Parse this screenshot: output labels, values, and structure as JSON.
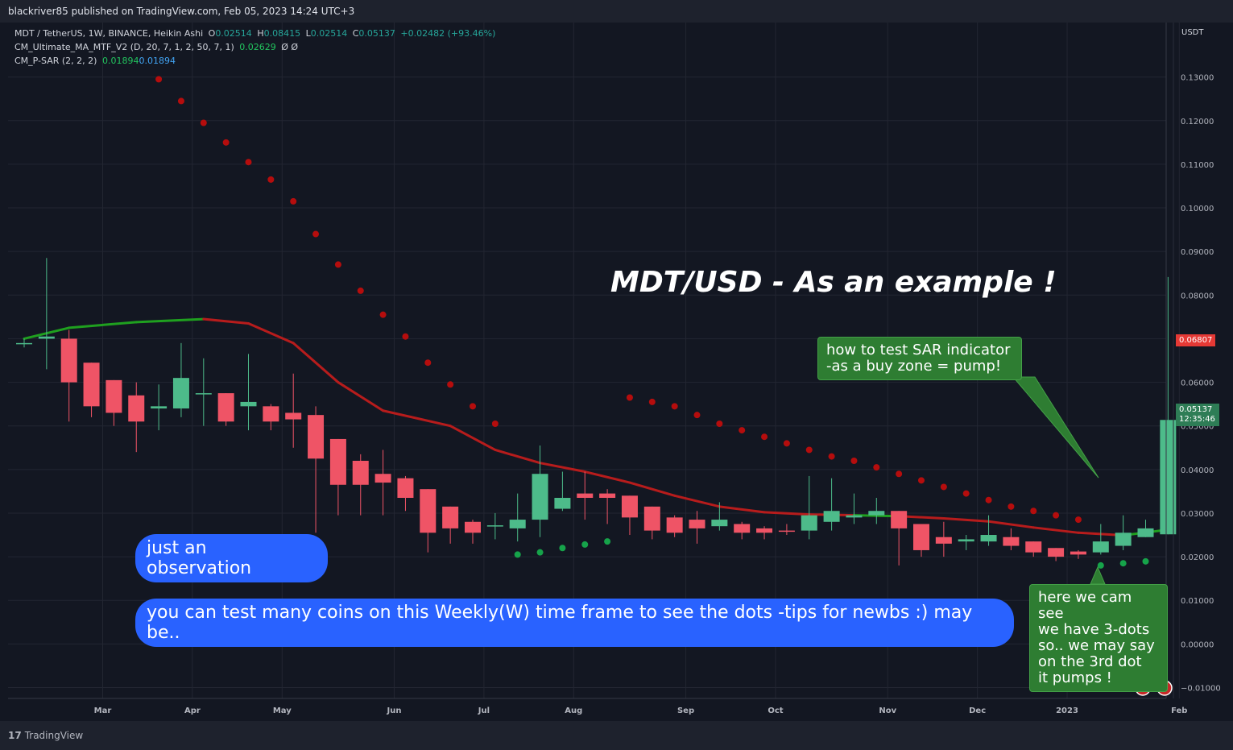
{
  "header": {
    "publish_line": "blackriver85 published on TradingView.com, Feb 05, 2023 14:24 UTC+3"
  },
  "legend": {
    "symbol_line": {
      "label": "MDT / TetherUS, 1W, BINANCE, Heikin Ashi",
      "o_label": "O",
      "o": "0.02514",
      "h_label": "H",
      "h": "0.08415",
      "l_label": "L",
      "l": "0.02514",
      "c_label": "C",
      "c": "0.05137",
      "change": "+0.02482 (+93.46%)"
    },
    "ma_line": {
      "label": "CM_Ultimate_MA_MTF_V2 (D, 20, 7, 1, 2, 50, 7, 1)",
      "value": "0.02629",
      "extra": "Ø  Ø"
    },
    "sar_line": {
      "label": "CM_P-SAR (2, 2, 2)",
      "value1": "0.01894",
      "value2": "0.01894"
    }
  },
  "annotations": {
    "title": "MDT/USD  - As an example !",
    "observation": "just an observation",
    "tips": "you can test many coins on this Weekly(W) time frame to see the dots -tips for newbs :) may be..",
    "sar_note": [
      "how to test SAR  indicator",
      "-as a buy zone = pump!"
    ],
    "dots_note": [
      "here we cam see",
      "we have 3-dots",
      "so.. we may say",
      "on the 3rd dot",
      "it pumps !"
    ]
  },
  "price_axis": {
    "unit": "USDT",
    "tag_ma": "0.06807",
    "tag_last": "0.05137",
    "tag_countdown": "12:35:46"
  },
  "footer": {
    "brand": "TradingView"
  },
  "colors": {
    "up": "#4dbb8a",
    "down": "#ef5466",
    "ma_up": "#1fa01f",
    "ma_down": "#b71c1c",
    "sar_up": "#16a34a",
    "sar_down": "#b50d0d",
    "bubble_blue": "#2962ff",
    "bubble_green": "#2e7d32"
  },
  "chart_data": {
    "type": "candlestick",
    "ylim": [
      -0.0125,
      0.1425
    ],
    "yticks": [
      -0.01,
      0,
      0.01,
      0.02,
      0.03,
      0.04,
      0.05,
      0.06,
      0.07,
      0.08,
      0.09,
      0.1,
      0.11,
      0.12,
      0.13
    ],
    "ytick_labels": [
      "−0.01000",
      "0.00000",
      "0.01000",
      "0.02000",
      "0.03000",
      "0.04000",
      "0.05000",
      "0.06000",
      "0.07000",
      "0.08000",
      "0.09000",
      "0.10000",
      "0.11000",
      "0.12000",
      "0.13000"
    ],
    "month_labels": [
      "Mar",
      "Apr",
      "May",
      "Jun",
      "Jul",
      "Aug",
      "Sep",
      "Oct",
      "Nov",
      "Dec",
      "2023",
      "Feb"
    ],
    "month_ticks": [
      3.5,
      7.5,
      11.5,
      16.5,
      20.5,
      24.5,
      29.5,
      33.5,
      38.5,
      42.5,
      46.5,
      51.5
    ],
    "candles": [
      {
        "o": 0.069,
        "h": 0.07,
        "l": 0.068,
        "c": 0.069
      },
      {
        "o": 0.07,
        "h": 0.0885,
        "l": 0.063,
        "c": 0.0705
      },
      {
        "o": 0.07,
        "h": 0.072,
        "l": 0.051,
        "c": 0.06
      },
      {
        "o": 0.0645,
        "h": 0.0645,
        "l": 0.052,
        "c": 0.0545
      },
      {
        "o": 0.0605,
        "h": 0.0605,
        "l": 0.05,
        "c": 0.053
      },
      {
        "o": 0.057,
        "h": 0.06,
        "l": 0.044,
        "c": 0.051
      },
      {
        "o": 0.054,
        "h": 0.0595,
        "l": 0.049,
        "c": 0.0545
      },
      {
        "o": 0.054,
        "h": 0.069,
        "l": 0.052,
        "c": 0.061
      },
      {
        "o": 0.0575,
        "h": 0.0655,
        "l": 0.05,
        "c": 0.0575
      },
      {
        "o": 0.0575,
        "h": 0.0575,
        "l": 0.05,
        "c": 0.051
      },
      {
        "o": 0.0545,
        "h": 0.0665,
        "l": 0.049,
        "c": 0.0555
      },
      {
        "o": 0.0545,
        "h": 0.055,
        "l": 0.049,
        "c": 0.051
      },
      {
        "o": 0.053,
        "h": 0.062,
        "l": 0.045,
        "c": 0.0515
      },
      {
        "o": 0.0525,
        "h": 0.0545,
        "l": 0.0255,
        "c": 0.0425
      },
      {
        "o": 0.047,
        "h": 0.047,
        "l": 0.0295,
        "c": 0.0365
      },
      {
        "o": 0.042,
        "h": 0.0435,
        "l": 0.0295,
        "c": 0.0365
      },
      {
        "o": 0.039,
        "h": 0.0445,
        "l": 0.0295,
        "c": 0.037
      },
      {
        "o": 0.038,
        "h": 0.0385,
        "l": 0.0305,
        "c": 0.0335
      },
      {
        "o": 0.0355,
        "h": 0.0355,
        "l": 0.021,
        "c": 0.0255
      },
      {
        "o": 0.0315,
        "h": 0.0315,
        "l": 0.023,
        "c": 0.0265
      },
      {
        "o": 0.028,
        "h": 0.0285,
        "l": 0.023,
        "c": 0.0255
      },
      {
        "o": 0.027,
        "h": 0.03,
        "l": 0.024,
        "c": 0.0272
      },
      {
        "o": 0.0265,
        "h": 0.0345,
        "l": 0.0235,
        "c": 0.0285
      },
      {
        "o": 0.0285,
        "h": 0.0455,
        "l": 0.0245,
        "c": 0.039
      },
      {
        "o": 0.031,
        "h": 0.0395,
        "l": 0.0305,
        "c": 0.0335
      },
      {
        "o": 0.0345,
        "h": 0.0395,
        "l": 0.0285,
        "c": 0.0335
      },
      {
        "o": 0.0345,
        "h": 0.0355,
        "l": 0.0275,
        "c": 0.0335
      },
      {
        "o": 0.034,
        "h": 0.034,
        "l": 0.025,
        "c": 0.029
      },
      {
        "o": 0.0315,
        "h": 0.0315,
        "l": 0.024,
        "c": 0.026
      },
      {
        "o": 0.029,
        "h": 0.0295,
        "l": 0.0245,
        "c": 0.0255
      },
      {
        "o": 0.0285,
        "h": 0.0305,
        "l": 0.023,
        "c": 0.0265
      },
      {
        "o": 0.027,
        "h": 0.0325,
        "l": 0.026,
        "c": 0.0285
      },
      {
        "o": 0.0275,
        "h": 0.028,
        "l": 0.024,
        "c": 0.0255
      },
      {
        "o": 0.0265,
        "h": 0.027,
        "l": 0.024,
        "c": 0.0255
      },
      {
        "o": 0.026,
        "h": 0.0275,
        "l": 0.025,
        "c": 0.0258
      },
      {
        "o": 0.026,
        "h": 0.0385,
        "l": 0.024,
        "c": 0.0295
      },
      {
        "o": 0.028,
        "h": 0.038,
        "l": 0.026,
        "c": 0.0305
      },
      {
        "o": 0.029,
        "h": 0.0345,
        "l": 0.0275,
        "c": 0.0295
      },
      {
        "o": 0.0295,
        "h": 0.0335,
        "l": 0.0275,
        "c": 0.0305
      },
      {
        "o": 0.0305,
        "h": 0.0305,
        "l": 0.018,
        "c": 0.0265
      },
      {
        "o": 0.0275,
        "h": 0.0275,
        "l": 0.02,
        "c": 0.0215
      },
      {
        "o": 0.0245,
        "h": 0.028,
        "l": 0.02,
        "c": 0.023
      },
      {
        "o": 0.0235,
        "h": 0.025,
        "l": 0.0215,
        "c": 0.024
      },
      {
        "o": 0.0235,
        "h": 0.0295,
        "l": 0.0225,
        "c": 0.025
      },
      {
        "o": 0.0245,
        "h": 0.0265,
        "l": 0.0215,
        "c": 0.0225
      },
      {
        "o": 0.0235,
        "h": 0.0235,
        "l": 0.02,
        "c": 0.021
      },
      {
        "o": 0.022,
        "h": 0.022,
        "l": 0.019,
        "c": 0.02
      },
      {
        "o": 0.0212,
        "h": 0.0215,
        "l": 0.0195,
        "c": 0.0205
      },
      {
        "o": 0.021,
        "h": 0.0275,
        "l": 0.0205,
        "c": 0.0235
      },
      {
        "o": 0.0225,
        "h": 0.0295,
        "l": 0.0215,
        "c": 0.0255
      },
      {
        "o": 0.0245,
        "h": 0.0285,
        "l": 0.0245,
        "c": 0.0265
      },
      {
        "o": 0.02514,
        "h": 0.08415,
        "l": 0.02514,
        "c": 0.05137
      }
    ],
    "ma": [
      [
        0,
        0.07
      ],
      [
        2,
        0.0725
      ],
      [
        5,
        0.0738
      ],
      [
        8,
        0.0745
      ],
      [
        10,
        0.0735
      ],
      [
        12,
        0.069
      ],
      [
        14,
        0.06
      ],
      [
        16,
        0.0535
      ],
      [
        19,
        0.05
      ],
      [
        21,
        0.0445
      ],
      [
        23,
        0.0415
      ],
      [
        25,
        0.0395
      ],
      [
        27,
        0.037
      ],
      [
        29,
        0.034
      ],
      [
        31,
        0.0315
      ],
      [
        33,
        0.0302
      ],
      [
        35,
        0.0297
      ],
      [
        37,
        0.0295
      ],
      [
        39,
        0.0293
      ],
      [
        41,
        0.0288
      ],
      [
        43,
        0.0281
      ],
      [
        45,
        0.0267
      ],
      [
        47,
        0.0255
      ],
      [
        49,
        0.0249
      ],
      [
        51,
        0.0262
      ]
    ],
    "ma_green_until": 7.5,
    "ma_green_segment": [
      36.5,
      39.5
    ],
    "sar_down": [
      [
        6,
        0.1295
      ],
      [
        7,
        0.1245
      ],
      [
        8,
        0.1195
      ],
      [
        9,
        0.115
      ],
      [
        10,
        0.1105
      ],
      [
        11,
        0.1065
      ],
      [
        12,
        0.1015
      ],
      [
        13,
        0.094
      ],
      [
        14,
        0.087
      ],
      [
        15,
        0.081
      ],
      [
        16,
        0.0755
      ],
      [
        17,
        0.0705
      ],
      [
        18,
        0.0645
      ],
      [
        19,
        0.0595
      ],
      [
        20,
        0.0545
      ],
      [
        21,
        0.0505
      ],
      [
        27,
        0.0565
      ],
      [
        28,
        0.0555
      ],
      [
        29,
        0.0545
      ],
      [
        30,
        0.0525
      ],
      [
        31,
        0.0505
      ],
      [
        32,
        0.049
      ],
      [
        33,
        0.0475
      ],
      [
        34,
        0.046
      ],
      [
        35,
        0.0445
      ],
      [
        36,
        0.043
      ],
      [
        37,
        0.042
      ],
      [
        38,
        0.0405
      ],
      [
        39,
        0.039
      ],
      [
        40,
        0.0375
      ],
      [
        41,
        0.036
      ],
      [
        42,
        0.0345
      ],
      [
        43,
        0.033
      ],
      [
        44,
        0.0315
      ],
      [
        45,
        0.0305
      ],
      [
        46,
        0.0295
      ],
      [
        47,
        0.0285
      ]
    ],
    "sar_up": [
      [
        22,
        0.0205
      ],
      [
        23,
        0.021
      ],
      [
        24,
        0.022
      ],
      [
        25,
        0.0228
      ],
      [
        26,
        0.0235
      ],
      [
        48,
        0.018
      ],
      [
        49,
        0.0185
      ],
      [
        50,
        0.01894
      ]
    ]
  }
}
